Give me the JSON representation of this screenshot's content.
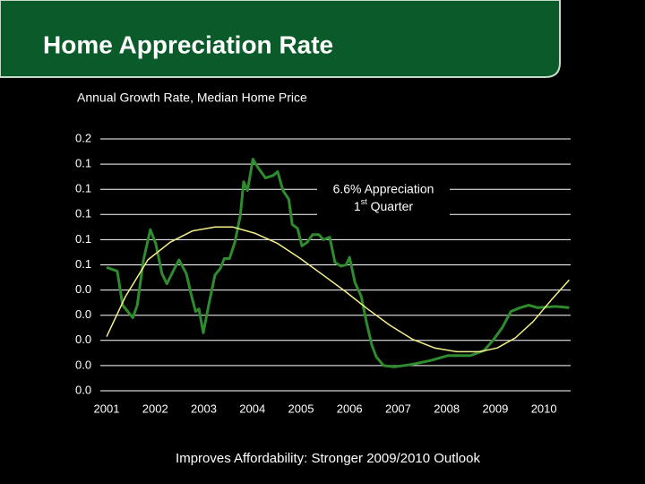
{
  "header": {
    "title": "Home Appreciation Rate"
  },
  "chart_data": {
    "type": "line",
    "subtitle": "Annual Growth Rate, Median Home Price",
    "annotation": {
      "line1": "6.6% Appreciation",
      "line2": [
        "1",
        "st",
        " Quarter"
      ]
    },
    "xlim": [
      2001,
      2010.55
    ],
    "xticks": [
      2001,
      2002,
      2003,
      2004,
      2005,
      2006,
      2007,
      2008,
      2009,
      2010
    ],
    "ylim": [
      -0.04,
      0.16
    ],
    "yticks": [
      {
        "value": 0.16,
        "label": "0.2"
      },
      {
        "value": 0.14,
        "label": "0.1"
      },
      {
        "value": 0.12,
        "label": "0.1"
      },
      {
        "value": 0.1,
        "label": "0.1"
      },
      {
        "value": 0.08,
        "label": "0.1"
      },
      {
        "value": 0.06,
        "label": "0.1"
      },
      {
        "value": 0.04,
        "label": "0.0"
      },
      {
        "value": 0.02,
        "label": "0.0"
      },
      {
        "value": 0,
        "label": "0.0"
      },
      {
        "value": -0.02,
        "label": "0.0"
      },
      {
        "value": -0.04,
        "label": "0.0"
      }
    ],
    "grid": true,
    "series": [
      {
        "color": "#2e8b2e",
        "x": [
          2001.0,
          2001.22,
          2001.33,
          2001.54,
          2001.63,
          2001.76,
          2001.9,
          2002.01,
          2002.14,
          2002.24,
          2002.37,
          2002.49,
          2002.64,
          2002.75,
          2002.83,
          2002.9,
          2002.99,
          2003.1,
          2003.23,
          2003.34,
          2003.42,
          2003.53,
          2003.64,
          2003.75,
          2003.82,
          2003.9,
          2004.01,
          2004.12,
          2004.27,
          2004.43,
          2004.52,
          2004.63,
          2004.75,
          2004.82,
          2004.93,
          2005.02,
          2005.13,
          2005.24,
          2005.37,
          2005.46,
          2005.59,
          2005.7,
          2005.82,
          2005.93,
          2006.0,
          2006.11,
          2006.24,
          2006.35,
          2006.46,
          2006.55,
          2006.7,
          2006.92,
          2007.29,
          2007.66,
          2008.03,
          2008.49,
          2008.77,
          2008.95,
          2009.14,
          2009.32,
          2009.51,
          2009.69,
          2009.87,
          2010.24,
          2010.52
        ],
        "values": [
          0.058,
          0.055,
          0.028,
          0.018,
          0.028,
          0.064,
          0.088,
          0.077,
          0.053,
          0.045,
          0.055,
          0.064,
          0.053,
          0.035,
          0.023,
          0.025,
          0.006,
          0.028,
          0.052,
          0.057,
          0.065,
          0.065,
          0.078,
          0.099,
          0.126,
          0.119,
          0.144,
          0.137,
          0.129,
          0.131,
          0.134,
          0.119,
          0.112,
          0.092,
          0.089,
          0.075,
          0.078,
          0.084,
          0.084,
          0.08,
          0.082,
          0.062,
          0.059,
          0.06,
          0.066,
          0.046,
          0.035,
          0.014,
          -0.004,
          -0.013,
          -0.02,
          -0.021,
          -0.019,
          -0.016,
          -0.012,
          -0.012,
          -0.008,
          0.0,
          0.01,
          0.023,
          0.026,
          0.028,
          0.026,
          0.027,
          0.026
        ]
      },
      {
        "color": "#f5f08a",
        "x": [
          2001.0,
          2001.39,
          2001.85,
          2002.31,
          2002.77,
          2003.23,
          2003.6,
          2004.06,
          2004.52,
          2004.99,
          2005.45,
          2005.91,
          2006.37,
          2006.83,
          2007.29,
          2007.75,
          2008.21,
          2008.68,
          2009.04,
          2009.41,
          2009.78,
          2010.15,
          2010.52
        ],
        "values": [
          0.003,
          0.035,
          0.064,
          0.078,
          0.087,
          0.09,
          0.09,
          0.085,
          0.077,
          0.065,
          0.052,
          0.039,
          0.025,
          0.012,
          0.001,
          -0.006,
          -0.009,
          -0.009,
          -0.006,
          0.002,
          0.015,
          0.032,
          0.048
        ]
      }
    ]
  },
  "footer": {
    "text": "Improves Affordability: Stronger 2009/2010 Outlook"
  }
}
